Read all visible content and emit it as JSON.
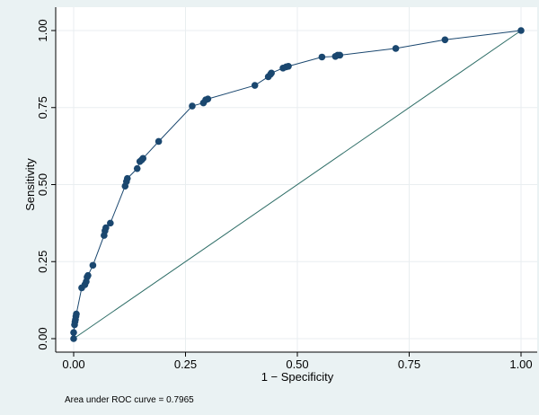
{
  "chart_data": {
    "type": "line",
    "xlabel": "1 − Specificity",
    "ylabel": "Sensitivity",
    "xlim": [
      0,
      1
    ],
    "ylim": [
      0,
      1
    ],
    "xticks": [
      "0.00",
      "0.25",
      "0.50",
      "0.75",
      "1.00"
    ],
    "yticks": [
      "0.00",
      "0.25",
      "0.50",
      "0.75",
      "1.00"
    ],
    "grid": true,
    "note": "Area under ROC curve = 0.7965",
    "colors": {
      "curve": "#1a476f",
      "reference": "#2d6d66",
      "plot_bg": "#ffffff",
      "page_bg": "#eaf2f3",
      "grid": "#e9eef0"
    },
    "series": [
      {
        "x": [
          0,
          0,
          0.002,
          0.003,
          0.004,
          0.005,
          0.006,
          0.018,
          0.025,
          0.028,
          0.03,
          0.032,
          0.043,
          0.068,
          0.07,
          0.072,
          0.082,
          0.115,
          0.118,
          0.12,
          0.142,
          0.148,
          0.152,
          0.155,
          0.19,
          0.265,
          0.29,
          0.295,
          0.3,
          0.405,
          0.435,
          0.44,
          0.442,
          0.468,
          0.475,
          0.48,
          0.555,
          0.585,
          0.59,
          0.595,
          0.72,
          0.83,
          1.0
        ],
        "y": [
          0,
          0.02,
          0.045,
          0.055,
          0.062,
          0.072,
          0.08,
          0.165,
          0.175,
          0.185,
          0.2,
          0.205,
          0.238,
          0.335,
          0.35,
          0.36,
          0.375,
          0.495,
          0.51,
          0.52,
          0.552,
          0.575,
          0.58,
          0.585,
          0.64,
          0.755,
          0.765,
          0.775,
          0.778,
          0.822,
          0.85,
          0.858,
          0.862,
          0.878,
          0.882,
          0.884,
          0.914,
          0.916,
          0.92,
          0.92,
          0.942,
          0.97,
          1.0
        ]
      },
      {
        "x": [
          0,
          1
        ],
        "y": [
          0,
          1
        ]
      }
    ]
  }
}
